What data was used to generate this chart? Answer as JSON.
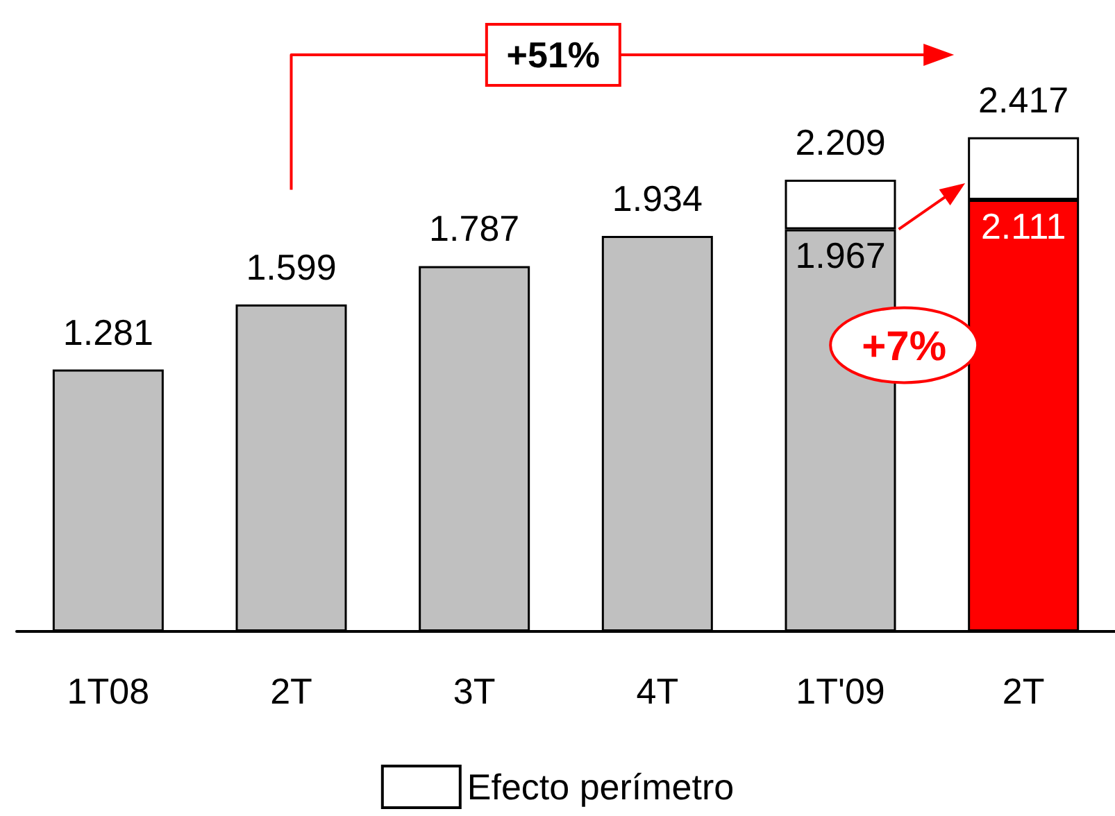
{
  "chart_data": {
    "type": "bar",
    "stacked": true,
    "categories": [
      "1T08",
      "2T",
      "3T",
      "4T",
      "1T'09",
      "2T"
    ],
    "ylim": [
      0,
      3
    ],
    "series": [
      {
        "colors": [
          "#c0c0c0",
          "#c0c0c0",
          "#c0c0c0",
          "#c0c0c0",
          "#c0c0c0",
          "#ff0000"
        ],
        "values": [
          1.281,
          1.599,
          1.787,
          1.934,
          1.967,
          2.111
        ],
        "value_labels": [
          "1.281",
          "1.599",
          "1.787",
          "1.934",
          "1.967",
          "2.111"
        ]
      },
      {
        "name": "Efecto perímetro",
        "color": "#ffffff",
        "values": [
          null,
          null,
          null,
          null,
          0.242,
          0.306
        ]
      }
    ],
    "totals": [
      null,
      null,
      null,
      null,
      "2.209",
      "2.417"
    ],
    "annotations": [
      "+51%",
      "+7%"
    ],
    "legend": "bottom"
  }
}
